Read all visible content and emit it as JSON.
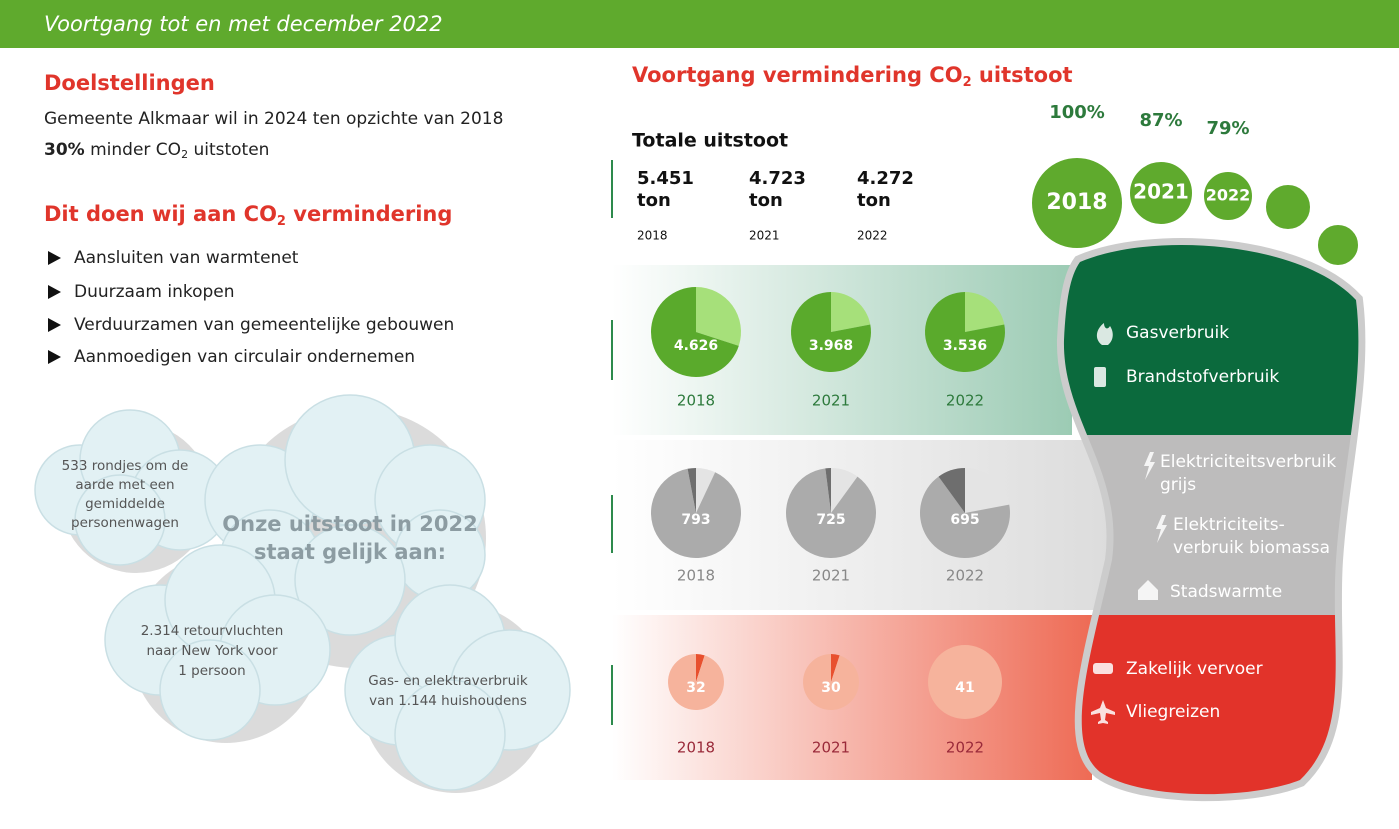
{
  "header": {
    "title": "Voortgang tot en met december 2022"
  },
  "goals": {
    "heading": "Doelstellingen",
    "line1": "Gemeente Alkmaar wil in 2024 ten opzichte van 2018",
    "line2_bold": "30%",
    "line2_mid": "minder CO",
    "line2_sub": "2",
    "line2_end": "uitstoten"
  },
  "actions": {
    "heading_pre": "Dit doen wij aan CO",
    "heading_sub": "2",
    "heading_post": "vermindering",
    "items": [
      "Aansluiten van warmtenet",
      "Duurzaam inkopen",
      "Verduurzamen van gemeentelijke gebouwen",
      "Aanmoedigen van circulair ondernemen"
    ]
  },
  "clouds": {
    "center": [
      "Onze uitstoot in 2022",
      "staat gelijk aan:"
    ],
    "facts": [
      [
        "533 rondjes om de",
        "aarde met een",
        "gemiddelde",
        "personenwagen"
      ],
      [
        "2.314 retourvluchten",
        "naar New York voor",
        "1 persoon"
      ],
      [
        "Gas- en elektraverbruik",
        "van 1.144 huishoudens"
      ]
    ]
  },
  "progress": {
    "title_pre": "Voortgang vermindering CO",
    "title_sub": "2",
    "title_post": "uitstoot",
    "total_heading": "Totale uitstoot",
    "totals": [
      {
        "amount": "5.451",
        "unit": "ton",
        "year": "2018"
      },
      {
        "amount": "4.723",
        "unit": "ton",
        "year": "2021"
      },
      {
        "amount": "4.272",
        "unit": "ton",
        "year": "2022"
      }
    ],
    "rows": [
      {
        "pies": [
          {
            "label": "4.626",
            "year": "2018",
            "slices": [
              {
                "value": 30,
                "color": "#a6e07a"
              },
              {
                "value": 70,
                "color": "#5aaa2c"
              }
            ]
          },
          {
            "label": "3.968",
            "year": "2021",
            "slices": [
              {
                "value": 22,
                "color": "#a6e07a"
              },
              {
                "value": 78,
                "color": "#5aaa2c"
              }
            ]
          },
          {
            "label": "3.536",
            "year": "2022",
            "slices": [
              {
                "value": 22,
                "color": "#a6e07a"
              },
              {
                "value": 78,
                "color": "#5aaa2c"
              }
            ]
          }
        ]
      },
      {
        "pies": [
          {
            "label": "793",
            "year": "2018",
            "slices": [
              {
                "value": 7,
                "color": "#e4e4e4"
              },
              {
                "value": 90,
                "color": "#ababab"
              },
              {
                "value": 3,
                "color": "#6e6e6e"
              }
            ]
          },
          {
            "label": "725",
            "year": "2021",
            "slices": [
              {
                "value": 10,
                "color": "#e4e4e4"
              },
              {
                "value": 88,
                "color": "#ababab"
              },
              {
                "value": 2,
                "color": "#6e6e6e"
              }
            ]
          },
          {
            "label": "695",
            "year": "2022",
            "slices": [
              {
                "value": 22,
                "color": "#e4e4e4"
              },
              {
                "value": 68,
                "color": "#ababab"
              },
              {
                "value": 10,
                "color": "#6e6e6e"
              }
            ]
          }
        ]
      },
      {
        "pies": [
          {
            "label": "32",
            "year": "2018",
            "slices": [
              {
                "value": 5,
                "color": "#e8502e"
              },
              {
                "value": 95,
                "color": "#f6b39c"
              }
            ]
          },
          {
            "label": "30",
            "year": "2021",
            "slices": [
              {
                "value": 5,
                "color": "#e8502e"
              },
              {
                "value": 95,
                "color": "#f6b39c"
              }
            ]
          },
          {
            "label": "41",
            "year": "2022",
            "slices": [
              {
                "value": 100,
                "color": "#f6b39c"
              }
            ]
          }
        ]
      }
    ]
  },
  "footprint": {
    "toes": [
      {
        "percent": "100%",
        "year": "2018"
      },
      {
        "percent": "87%",
        "year": "2021"
      },
      {
        "percent": "79%",
        "year": "2022"
      }
    ],
    "legend": [
      [
        "Gasverbruik"
      ],
      [
        "Brandstofverbruik"
      ],
      [
        "Elektriciteitsverbruik",
        "grijs"
      ],
      [
        "Elektriciteits-",
        "verbruik biomassa"
      ],
      [
        "Stadswarmte"
      ],
      [
        "Zakelijk vervoer"
      ],
      [
        "Vliegreizen"
      ]
    ]
  }
}
